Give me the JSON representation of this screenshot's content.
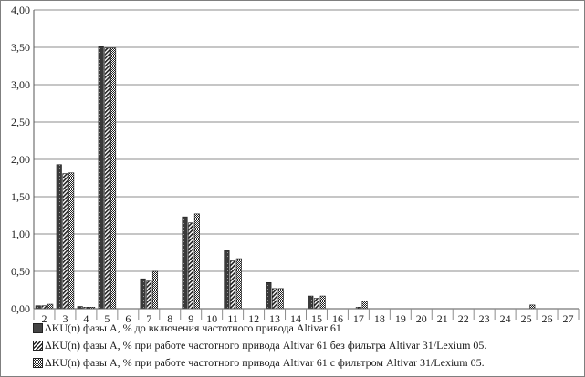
{
  "chart_data": {
    "type": "bar",
    "categories": [
      "2",
      "3",
      "4",
      "5",
      "6",
      "7",
      "8",
      "9",
      "10",
      "11",
      "12",
      "13",
      "14",
      "15",
      "16",
      "17",
      "18",
      "19",
      "20",
      "21",
      "22",
      "23",
      "24",
      "25",
      "26",
      "27"
    ],
    "ylim": [
      0,
      4
    ],
    "yticks": [
      "0,00",
      "0,50",
      "1,00",
      "1,50",
      "2,00",
      "2,50",
      "3,00",
      "3,50",
      "4,00"
    ],
    "grid": true,
    "legend_position": "bottom",
    "series": [
      {
        "name": "ΔKU(n)  фазы А, % до включения частотного привода Altivar 61",
        "pattern": "dark-dots",
        "values": [
          0.04,
          1.93,
          0.03,
          3.51,
          0,
          0.4,
          0,
          1.23,
          0,
          0.78,
          0,
          0.35,
          0,
          0.17,
          0,
          0,
          0,
          0,
          0,
          0,
          0,
          0,
          0,
          0,
          0,
          0
        ]
      },
      {
        "name": "ΔKU(n)  фазы А, % при работе частотного привода Altivar 61 без фильтра Altivar 31/Lexium 05.",
        "pattern": "diagonal-stripes",
        "values": [
          0.04,
          1.81,
          0.02,
          3.49,
          0,
          0.37,
          0,
          1.15,
          0,
          0.64,
          0,
          0.27,
          0,
          0.14,
          0,
          0.02,
          0,
          0,
          0,
          0,
          0,
          0,
          0,
          0,
          0,
          0
        ]
      },
      {
        "name": "ΔKU(n)  фазы А, % при работе частотного привода Altivar 61 с фильтром Altivar 31/Lexium 05.",
        "pattern": "checker",
        "values": [
          0.06,
          1.82,
          0.02,
          3.49,
          0,
          0.5,
          0,
          1.27,
          0,
          0.67,
          0,
          0.27,
          0,
          0.17,
          0,
          0.1,
          0,
          0,
          0,
          0,
          0,
          0,
          0,
          0.05,
          0,
          0
        ]
      }
    ]
  }
}
